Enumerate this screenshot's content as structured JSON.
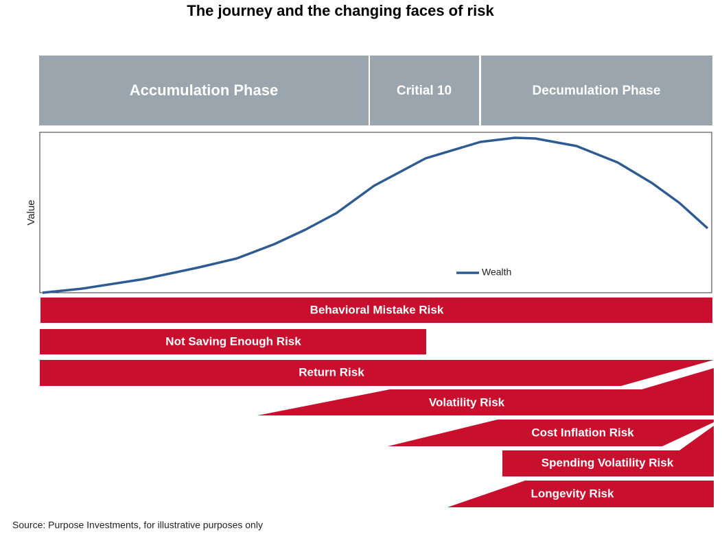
{
  "title": "The journey and the changing faces of risk",
  "phases": [
    "Accumulation Phase",
    "Critial 10",
    "Decumulation Phase"
  ],
  "chart": {
    "y_axis_label": "Value",
    "legend": "Wealth"
  },
  "risks": [
    "Behavioral Mistake Risk",
    "Not Saving Enough Risk",
    "Return Risk",
    "Volatility Risk",
    "Cost Inflation Risk",
    "Spending Volatility Risk",
    "Longevity Risk"
  ],
  "source": "Source: Purpose Investments, for illustrative purposes only"
}
